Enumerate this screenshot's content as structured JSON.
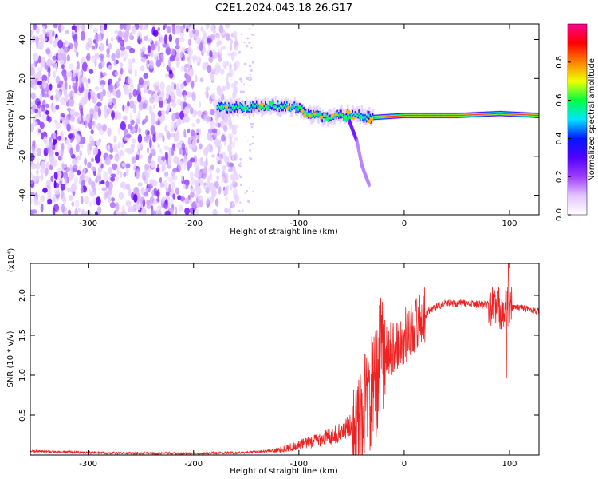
{
  "title": "C2E1.2024.043.18.26.G17",
  "chart_data": [
    {
      "type": "heatmap",
      "xlabel": "Height of straight line (km)",
      "ylabel": "Frequency (Hz)",
      "xlim": [
        -355,
        128
      ],
      "ylim": [
        -50,
        48
      ],
      "x_ticks": [
        -300,
        -200,
        -100,
        0,
        100
      ],
      "y_ticks": [
        -40,
        -20,
        0,
        20,
        40
      ],
      "colorbar": {
        "label": "Normalized spectral amplitude",
        "range": [
          0,
          1
        ],
        "ticks": [
          "0.0",
          "0.2",
          "0.4",
          "0.6",
          "0.8"
        ],
        "colors": [
          "#ffffff",
          "#e3c6ff",
          "#9d3cff",
          "#5000ff",
          "#0018ff",
          "#00e5ff",
          "#00ff40",
          "#f0ff00",
          "#ff8000",
          "#ff0000",
          "#ff0090"
        ]
      },
      "features": {
        "noise_region_x": [
          -355,
          -158
        ],
        "noise_frequency_span": [
          -50,
          48
        ],
        "signal_track": [
          {
            "x": -178,
            "freq": 5
          },
          {
            "x": -150,
            "freq": 5
          },
          {
            "x": -125,
            "freq": 6
          },
          {
            "x": -105,
            "freq": 5
          },
          {
            "x": -90,
            "freq": 2
          },
          {
            "x": -75,
            "freq": 0
          },
          {
            "x": -60,
            "freq": 1
          },
          {
            "x": -45,
            "freq": 1
          },
          {
            "x": -30,
            "freq": 0
          },
          {
            "x": 0,
            "freq": 1
          },
          {
            "x": 50,
            "freq": 1
          },
          {
            "x": 90,
            "freq": 2
          },
          {
            "x": 128,
            "freq": 1
          }
        ],
        "secondary_branch": [
          {
            "x": -52,
            "freq": -2
          },
          {
            "x": -45,
            "freq": -12
          },
          {
            "x": -40,
            "freq": -25
          },
          {
            "x": -33,
            "freq": -35
          }
        ]
      }
    },
    {
      "type": "line",
      "xlabel": "Height of straight line (km)",
      "ylabel": "SNR (10 * v/v)",
      "y_multiplier": "(x10⁴)",
      "xlim": [
        -355,
        128
      ],
      "ylim": [
        0,
        2.4
      ],
      "x_ticks": [
        -300,
        -200,
        -100,
        0,
        100
      ],
      "y_ticks": [
        "0.5",
        "1.0",
        "1.5",
        "2.0"
      ],
      "series": [
        {
          "color": "#ee2222",
          "x": [
            -355,
            -300,
            -250,
            -200,
            -150,
            -120,
            -100,
            -80,
            -60,
            -40,
            -30,
            -25,
            -20,
            -15,
            -10,
            -5,
            0,
            5,
            10,
            15,
            20,
            25,
            30,
            35,
            40,
            60,
            80,
            90,
            95,
            100,
            110,
            128
          ],
          "y": [
            0.05,
            0.03,
            0.02,
            0.02,
            0.03,
            0.06,
            0.12,
            0.2,
            0.28,
            0.5,
            0.8,
            1.0,
            1.3,
            1.3,
            1.35,
            1.4,
            1.48,
            1.55,
            1.63,
            1.7,
            1.76,
            1.82,
            1.86,
            1.88,
            1.9,
            1.9,
            1.88,
            1.85,
            1.8,
            1.85,
            1.85,
            1.8
          ]
        }
      ]
    }
  ]
}
